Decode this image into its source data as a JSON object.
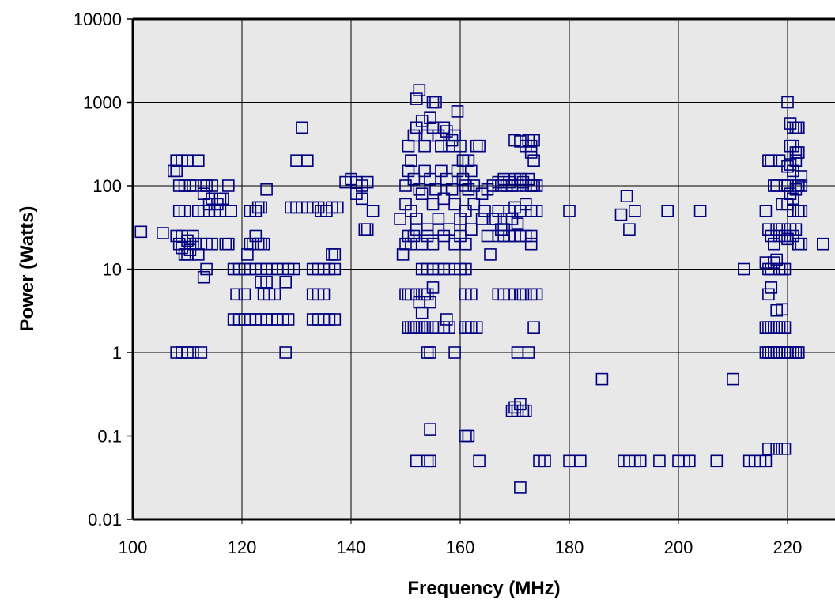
{
  "chart_data": {
    "type": "scatter",
    "xlabel": "Frequency (MHz)",
    "ylabel": "Power (Watts)",
    "xlim": [
      100,
      227
    ],
    "ylim": [
      0.01,
      10000
    ],
    "yscale": "log",
    "grid": true,
    "marker": "open-square",
    "marker_color": "#000080",
    "plot_background": "#e8e8e8",
    "x_ticks": [
      "100",
      "120",
      "140",
      "160",
      "180",
      "200",
      "220"
    ],
    "y_ticks": [
      "0.01",
      "0.1",
      "1",
      "10",
      "100",
      "1000",
      "10000"
    ],
    "points": [
      [
        101.5,
        28
      ],
      [
        105.5,
        27
      ],
      [
        107.5,
        150
      ],
      [
        108,
        200
      ],
      [
        108,
        150
      ],
      [
        108.5,
        100
      ],
      [
        109,
        200
      ],
      [
        109.5,
        100
      ],
      [
        110,
        200
      ],
      [
        110.5,
        100
      ],
      [
        111,
        100
      ],
      [
        112,
        200
      ],
      [
        113,
        100
      ],
      [
        113.5,
        100
      ],
      [
        114.5,
        100
      ],
      [
        108,
        25
      ],
      [
        108.5,
        20
      ],
      [
        109,
        18
      ],
      [
        109.5,
        15
      ],
      [
        110,
        22
      ],
      [
        110.5,
        17
      ],
      [
        111,
        25
      ],
      [
        111.5,
        20
      ],
      [
        112,
        15
      ],
      [
        112.5,
        20
      ],
      [
        109,
        25
      ],
      [
        110,
        15
      ],
      [
        111,
        20
      ],
      [
        108.5,
        50
      ],
      [
        109.5,
        50
      ],
      [
        112,
        50
      ],
      [
        113,
        50
      ],
      [
        114,
        60
      ],
      [
        115,
        50
      ],
      [
        116,
        50
      ],
      [
        114.5,
        70
      ],
      [
        113,
        80
      ],
      [
        115.5,
        60
      ],
      [
        116,
        70
      ],
      [
        116.5,
        70
      ],
      [
        113.5,
        20
      ],
      [
        114.5,
        20
      ],
      [
        117,
        20
      ],
      [
        113,
        8
      ],
      [
        113.5,
        10
      ],
      [
        108,
        1
      ],
      [
        109,
        1
      ],
      [
        110,
        1
      ],
      [
        111,
        1
      ],
      [
        112.5,
        1
      ],
      [
        117.5,
        100
      ],
      [
        118,
        50
      ],
      [
        117.5,
        20
      ],
      [
        118.5,
        10
      ],
      [
        119.5,
        10
      ],
      [
        120.5,
        10
      ],
      [
        121.5,
        10
      ],
      [
        122.5,
        10
      ],
      [
        123.5,
        10
      ],
      [
        124.5,
        10
      ],
      [
        125.5,
        10
      ],
      [
        126.5,
        10
      ],
      [
        127.5,
        10
      ],
      [
        128.5,
        10
      ],
      [
        129.5,
        10
      ],
      [
        118.5,
        2.5
      ],
      [
        119.5,
        2.5
      ],
      [
        120.5,
        2.5
      ],
      [
        121.5,
        2.5
      ],
      [
        122.5,
        2.5
      ],
      [
        123.5,
        2.5
      ],
      [
        124.5,
        2.5
      ],
      [
        125.5,
        2.5
      ],
      [
        126.5,
        2.5
      ],
      [
        127.5,
        2.5
      ],
      [
        128.5,
        2.5
      ],
      [
        119,
        5
      ],
      [
        120.5,
        5
      ],
      [
        124,
        5
      ],
      [
        125,
        5
      ],
      [
        126,
        5
      ],
      [
        128,
        7
      ],
      [
        121,
        15
      ],
      [
        121.5,
        20
      ],
      [
        122,
        20
      ],
      [
        122.5,
        25
      ],
      [
        123,
        20
      ],
      [
        123.5,
        20
      ],
      [
        124,
        20
      ],
      [
        124.5,
        90
      ],
      [
        121.5,
        50
      ],
      [
        122.5,
        50
      ],
      [
        123,
        55
      ],
      [
        123.5,
        55
      ],
      [
        123.5,
        7
      ],
      [
        124.5,
        7
      ],
      [
        128,
        1
      ],
      [
        129,
        55
      ],
      [
        130,
        55
      ],
      [
        131,
        55
      ],
      [
        132,
        55
      ],
      [
        133,
        55
      ],
      [
        134,
        55
      ],
      [
        131,
        500
      ],
      [
        130,
        200
      ],
      [
        132,
        200
      ],
      [
        133,
        10
      ],
      [
        134,
        10
      ],
      [
        135,
        10
      ],
      [
        136,
        10
      ],
      [
        137,
        10
      ],
      [
        133,
        2.5
      ],
      [
        134,
        2.5
      ],
      [
        135,
        2.5
      ],
      [
        136,
        2.5
      ],
      [
        137,
        2.5
      ],
      [
        133,
        5
      ],
      [
        134,
        5
      ],
      [
        135,
        5
      ],
      [
        134.5,
        50
      ],
      [
        135.5,
        50
      ],
      [
        136.5,
        55
      ],
      [
        137.5,
        55
      ],
      [
        136.5,
        15
      ],
      [
        137,
        15
      ],
      [
        139,
        110
      ],
      [
        140,
        120
      ],
      [
        141,
        110
      ],
      [
        142,
        100
      ],
      [
        143,
        110
      ],
      [
        141,
        80
      ],
      [
        142,
        70
      ],
      [
        143,
        30
      ],
      [
        142.5,
        30
      ],
      [
        144,
        50
      ],
      [
        149,
        40
      ],
      [
        149.5,
        15
      ],
      [
        150,
        20
      ],
      [
        150,
        100
      ],
      [
        150.5,
        300
      ],
      [
        151,
        200
      ],
      [
        151.5,
        400
      ],
      [
        152,
        1100
      ],
      [
        152.5,
        1400
      ],
      [
        152,
        500
      ],
      [
        153,
        600
      ],
      [
        153.5,
        300
      ],
      [
        154,
        400
      ],
      [
        154.5,
        650
      ],
      [
        155,
        500
      ],
      [
        155.5,
        1000
      ],
      [
        155,
        1000
      ],
      [
        156,
        400
      ],
      [
        156.5,
        300
      ],
      [
        157,
        500
      ],
      [
        157.5,
        450
      ],
      [
        158,
        300
      ],
      [
        158.5,
        350
      ],
      [
        159,
        400
      ],
      [
        159.5,
        780
      ],
      [
        160,
        300
      ],
      [
        160.5,
        200
      ],
      [
        161,
        100
      ],
      [
        161.5,
        200
      ],
      [
        162,
        150
      ],
      [
        162.5,
        100
      ],
      [
        163,
        300
      ],
      [
        163.5,
        300
      ],
      [
        150,
        60
      ],
      [
        151,
        50
      ],
      [
        152,
        40
      ],
      [
        153,
        80
      ],
      [
        154,
        30
      ],
      [
        155,
        60
      ],
      [
        156,
        40
      ],
      [
        157,
        70
      ],
      [
        158,
        30
      ],
      [
        159,
        60
      ],
      [
        160,
        40
      ],
      [
        161,
        50
      ],
      [
        162,
        30
      ],
      [
        150.5,
        150
      ],
      [
        151.5,
        120
      ],
      [
        152.5,
        90
      ],
      [
        153.5,
        150
      ],
      [
        154.5,
        120
      ],
      [
        155.5,
        90
      ],
      [
        156.5,
        150
      ],
      [
        157.5,
        120
      ],
      [
        158.5,
        90
      ],
      [
        159.5,
        150
      ],
      [
        160.5,
        120
      ],
      [
        161.5,
        90
      ],
      [
        162.5,
        60
      ],
      [
        150.5,
        25
      ],
      [
        151,
        20
      ],
      [
        151.5,
        25
      ],
      [
        152,
        30
      ],
      [
        153,
        20
      ],
      [
        154,
        25
      ],
      [
        155,
        20
      ],
      [
        156,
        30
      ],
      [
        157,
        25
      ],
      [
        158,
        30
      ],
      [
        159,
        20
      ],
      [
        160,
        25
      ],
      [
        161,
        20
      ],
      [
        162,
        30
      ],
      [
        150,
        5
      ],
      [
        150.5,
        5
      ],
      [
        151,
        5
      ],
      [
        152,
        5
      ],
      [
        152.5,
        4
      ],
      [
        153,
        3
      ],
      [
        153.5,
        5
      ],
      [
        154,
        5
      ],
      [
        154.5,
        4
      ],
      [
        155,
        6
      ],
      [
        153,
        10
      ],
      [
        154,
        10
      ],
      [
        155,
        10
      ],
      [
        156,
        10
      ],
      [
        157,
        10
      ],
      [
        158,
        10
      ],
      [
        157.5,
        2.5
      ],
      [
        160,
        10
      ],
      [
        161,
        10
      ],
      [
        161,
        5
      ],
      [
        162,
        5
      ],
      [
        150.5,
        2
      ],
      [
        151,
        2
      ],
      [
        151.5,
        2
      ],
      [
        152,
        2
      ],
      [
        152.5,
        2
      ],
      [
        153,
        2
      ],
      [
        153.5,
        2
      ],
      [
        154,
        2
      ],
      [
        155,
        2
      ],
      [
        156,
        2
      ],
      [
        157,
        2
      ],
      [
        158,
        2
      ],
      [
        161,
        2
      ],
      [
        161.5,
        2
      ],
      [
        162,
        2
      ],
      [
        163,
        2
      ],
      [
        154,
        1
      ],
      [
        154.5,
        1
      ],
      [
        159,
        1
      ],
      [
        154.5,
        0.12
      ],
      [
        152,
        0.05
      ],
      [
        154,
        0.05
      ],
      [
        154.5,
        0.05
      ],
      [
        161,
        0.1
      ],
      [
        161.5,
        0.1
      ],
      [
        163.5,
        0.05
      ],
      [
        164,
        40
      ],
      [
        164.5,
        50
      ],
      [
        165,
        25
      ],
      [
        165.5,
        15
      ],
      [
        166,
        40
      ],
      [
        166.5,
        40
      ],
      [
        167,
        50
      ],
      [
        167.5,
        30
      ],
      [
        168,
        30
      ],
      [
        168.5,
        40
      ],
      [
        164,
        80
      ],
      [
        165,
        90
      ],
      [
        166,
        100
      ],
      [
        167,
        110
      ],
      [
        167.5,
        100
      ],
      [
        168,
        120
      ],
      [
        168.5,
        100
      ],
      [
        169,
        110
      ],
      [
        169.5,
        100
      ],
      [
        170,
        120
      ],
      [
        170.5,
        100
      ],
      [
        171,
        120
      ],
      [
        171.5,
        110
      ],
      [
        172,
        100
      ],
      [
        172.5,
        120
      ],
      [
        173,
        100
      ],
      [
        173.5,
        100
      ],
      [
        174,
        100
      ],
      [
        167,
        25
      ],
      [
        168,
        25
      ],
      [
        169,
        25
      ],
      [
        170,
        25
      ],
      [
        171,
        25
      ],
      [
        172,
        25
      ],
      [
        173,
        20
      ],
      [
        173,
        25
      ],
      [
        169,
        50
      ],
      [
        170,
        55
      ],
      [
        171,
        50
      ],
      [
        172,
        60
      ],
      [
        173,
        50
      ],
      [
        174,
        50
      ],
      [
        169.5,
        40
      ],
      [
        170.5,
        35
      ],
      [
        170,
        350
      ],
      [
        171,
        340
      ],
      [
        172,
        300
      ],
      [
        172.5,
        350
      ],
      [
        173,
        300
      ],
      [
        173,
        250
      ],
      [
        173.5,
        200
      ],
      [
        173.5,
        350
      ],
      [
        167,
        5
      ],
      [
        168,
        5
      ],
      [
        169,
        5
      ],
      [
        170,
        5
      ],
      [
        171,
        5
      ],
      [
        171.5,
        5
      ],
      [
        172,
        5
      ],
      [
        173,
        5
      ],
      [
        174,
        5
      ],
      [
        173.5,
        2
      ],
      [
        170.5,
        1
      ],
      [
        172.5,
        1
      ],
      [
        169.5,
        0.2
      ],
      [
        170,
        0.22
      ],
      [
        170.5,
        0.2
      ],
      [
        171,
        0.24
      ],
      [
        171.5,
        0.2
      ],
      [
        172,
        0.2
      ],
      [
        171,
        0.024
      ],
      [
        174.5,
        0.05
      ],
      [
        175.5,
        0.05
      ],
      [
        180,
        0.05
      ],
      [
        182,
        0.05
      ],
      [
        180,
        50
      ],
      [
        186,
        0.48
      ],
      [
        189.5,
        45
      ],
      [
        190.5,
        75
      ],
      [
        191,
        30
      ],
      [
        192,
        50
      ],
      [
        198,
        50
      ],
      [
        204,
        50
      ],
      [
        190,
        0.05
      ],
      [
        191,
        0.05
      ],
      [
        192,
        0.05
      ],
      [
        193,
        0.05
      ],
      [
        196.5,
        0.05
      ],
      [
        200,
        0.05
      ],
      [
        201,
        0.05
      ],
      [
        202,
        0.05
      ],
      [
        207,
        0.05
      ],
      [
        210,
        0.48
      ],
      [
        212,
        10
      ],
      [
        213,
        0.05
      ],
      [
        214,
        0.05
      ],
      [
        215,
        0.05
      ],
      [
        216,
        0.05
      ],
      [
        216.5,
        0.07
      ],
      [
        216,
        50
      ],
      [
        216.5,
        200
      ],
      [
        217,
        200
      ],
      [
        217.5,
        100
      ],
      [
        218,
        100
      ],
      [
        218.5,
        200
      ],
      [
        219,
        60
      ],
      [
        219.5,
        100
      ],
      [
        216.5,
        30
      ],
      [
        217,
        25
      ],
      [
        217.5,
        20
      ],
      [
        218,
        30
      ],
      [
        218.5,
        25
      ],
      [
        219,
        30
      ],
      [
        219.5,
        25
      ],
      [
        216,
        12
      ],
      [
        216.5,
        10
      ],
      [
        217,
        10
      ],
      [
        217.5,
        12
      ],
      [
        218,
        13
      ],
      [
        218.5,
        10
      ],
      [
        219,
        10
      ],
      [
        219.5,
        10
      ],
      [
        216.5,
        5
      ],
      [
        217,
        6
      ],
      [
        218,
        3.2
      ],
      [
        219,
        3.3
      ],
      [
        216,
        2
      ],
      [
        216.5,
        2
      ],
      [
        217,
        2
      ],
      [
        217.5,
        2
      ],
      [
        218,
        2
      ],
      [
        218.5,
        2
      ],
      [
        219,
        2
      ],
      [
        219.5,
        2
      ],
      [
        216,
        1
      ],
      [
        216.5,
        1
      ],
      [
        217,
        1
      ],
      [
        217.5,
        1
      ],
      [
        218,
        1
      ],
      [
        218.5,
        1
      ],
      [
        219,
        1
      ],
      [
        219.5,
        1
      ],
      [
        220,
        1
      ],
      [
        220.5,
        1
      ],
      [
        221,
        1
      ],
      [
        221.5,
        1
      ],
      [
        222,
        1
      ],
      [
        218,
        0.07
      ],
      [
        219,
        0.07
      ],
      [
        219.5,
        0.07
      ],
      [
        220,
        1000
      ],
      [
        220.5,
        560
      ],
      [
        221,
        500
      ],
      [
        221.5,
        500
      ],
      [
        222,
        500
      ],
      [
        220.5,
        300
      ],
      [
        221,
        300
      ],
      [
        221.5,
        250
      ],
      [
        222,
        250
      ],
      [
        222.5,
        130
      ],
      [
        220,
        170
      ],
      [
        221,
        150
      ],
      [
        220.5,
        180
      ],
      [
        221.5,
        200
      ],
      [
        220,
        100
      ],
      [
        220.5,
        80
      ],
      [
        221,
        70
      ],
      [
        221.5,
        90
      ],
      [
        222,
        100
      ],
      [
        222.5,
        100
      ],
      [
        220,
        60
      ],
      [
        221,
        50
      ],
      [
        222,
        50
      ],
      [
        222.5,
        50
      ],
      [
        220.5,
        30
      ],
      [
        221.5,
        30
      ],
      [
        220,
        23
      ],
      [
        221,
        25
      ],
      [
        222,
        20
      ],
      [
        222.5,
        20
      ],
      [
        226.5,
        20
      ]
    ]
  }
}
